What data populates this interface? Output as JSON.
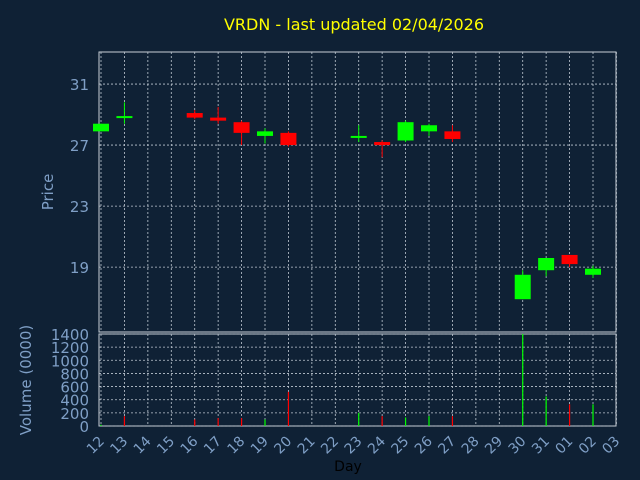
{
  "colors": {
    "background": "#0f2135",
    "axis_text": "#7f9fc6",
    "title": "#ffff00",
    "grid": "#bfc8d2",
    "up": "#00ff00",
    "down": "#ff0000",
    "border": "#c8d0d8"
  },
  "chart_data": [
    {
      "type": "candlestick",
      "title": "VRDN - last updated 02/04/2026",
      "ylabel": "Price",
      "ylim": [
        14.75,
        33.1
      ],
      "yticks": [
        19,
        23,
        27,
        31
      ],
      "xlim": [
        12,
        33
      ],
      "grid": true,
      "candles": [
        {
          "day": "12",
          "x": 12,
          "open": 27.9,
          "high": 28.4,
          "low": 27.9,
          "close": 28.4
        },
        {
          "day": "13",
          "x": 13,
          "open": 28.8,
          "high": 29.8,
          "low": 28.4,
          "close": 28.9
        },
        {
          "day": "16",
          "x": 16,
          "open": 29.1,
          "high": 29.3,
          "low": 28.7,
          "close": 28.8
        },
        {
          "day": "17",
          "x": 17,
          "open": 28.8,
          "high": 29.5,
          "low": 28.4,
          "close": 28.6
        },
        {
          "day": "18",
          "x": 18,
          "open": 28.5,
          "high": 28.6,
          "low": 27.0,
          "close": 27.8
        },
        {
          "day": "19",
          "x": 19,
          "open": 27.6,
          "high": 28.1,
          "low": 27.1,
          "close": 27.9
        },
        {
          "day": "20",
          "x": 20,
          "open": 27.8,
          "high": 27.9,
          "low": 26.9,
          "close": 27.0
        },
        {
          "day": "23",
          "x": 23,
          "open": 27.5,
          "high": 28.3,
          "low": 27.2,
          "close": 27.6
        },
        {
          "day": "24",
          "x": 24,
          "open": 27.2,
          "high": 27.3,
          "low": 26.2,
          "close": 27.0
        },
        {
          "day": "25",
          "x": 25,
          "open": 27.3,
          "high": 28.6,
          "low": 27.2,
          "close": 28.5
        },
        {
          "day": "26",
          "x": 26,
          "open": 27.9,
          "high": 28.4,
          "low": 27.6,
          "close": 28.3
        },
        {
          "day": "27",
          "x": 27,
          "open": 27.9,
          "high": 28.3,
          "low": 27.2,
          "close": 27.4
        },
        {
          "day": "30",
          "x": 30,
          "open": 16.9,
          "high": 18.8,
          "low": 16.9,
          "close": 18.5
        },
        {
          "day": "31",
          "x": 31,
          "open": 18.8,
          "high": 19.6,
          "low": 18.4,
          "close": 19.6
        },
        {
          "day": "01",
          "x": 32,
          "open": 19.8,
          "high": 19.8,
          "low": 19.0,
          "close": 19.2
        },
        {
          "day": "02",
          "x": 33,
          "open": 18.5,
          "high": 19.1,
          "low": 18.3,
          "close": 18.9
        }
      ]
    },
    {
      "type": "bar",
      "ylabel": "Volume (0000)",
      "xlabel": "Day",
      "ylim": [
        0,
        1400
      ],
      "yticks": [
        0,
        200,
        400,
        600,
        800,
        1000,
        1200,
        1400
      ],
      "categories": [
        "12",
        "13",
        "14",
        "15",
        "16",
        "17",
        "18",
        "19",
        "20",
        "21",
        "22",
        "23",
        "24",
        "25",
        "26",
        "27",
        "28",
        "29",
        "30",
        "31",
        "01",
        "02",
        "03"
      ],
      "grid": true,
      "bars": [
        {
          "x": 12,
          "value": 20,
          "direction": "up"
        },
        {
          "x": 13,
          "value": 150,
          "direction": "down"
        },
        {
          "x": 16,
          "value": 100,
          "direction": "down"
        },
        {
          "x": 17,
          "value": 120,
          "direction": "down"
        },
        {
          "x": 18,
          "value": 120,
          "direction": "down"
        },
        {
          "x": 19,
          "value": 100,
          "direction": "up"
        },
        {
          "x": 20,
          "value": 520,
          "direction": "down"
        },
        {
          "x": 23,
          "value": 200,
          "direction": "up"
        },
        {
          "x": 24,
          "value": 150,
          "direction": "down"
        },
        {
          "x": 25,
          "value": 130,
          "direction": "up"
        },
        {
          "x": 26,
          "value": 150,
          "direction": "up"
        },
        {
          "x": 27,
          "value": 150,
          "direction": "down"
        },
        {
          "x": 30,
          "value": 1400,
          "direction": "up"
        },
        {
          "x": 31,
          "value": 450,
          "direction": "up"
        },
        {
          "x": 32,
          "value": 330,
          "direction": "down"
        },
        {
          "x": 33,
          "value": 330,
          "direction": "up"
        }
      ]
    }
  ]
}
